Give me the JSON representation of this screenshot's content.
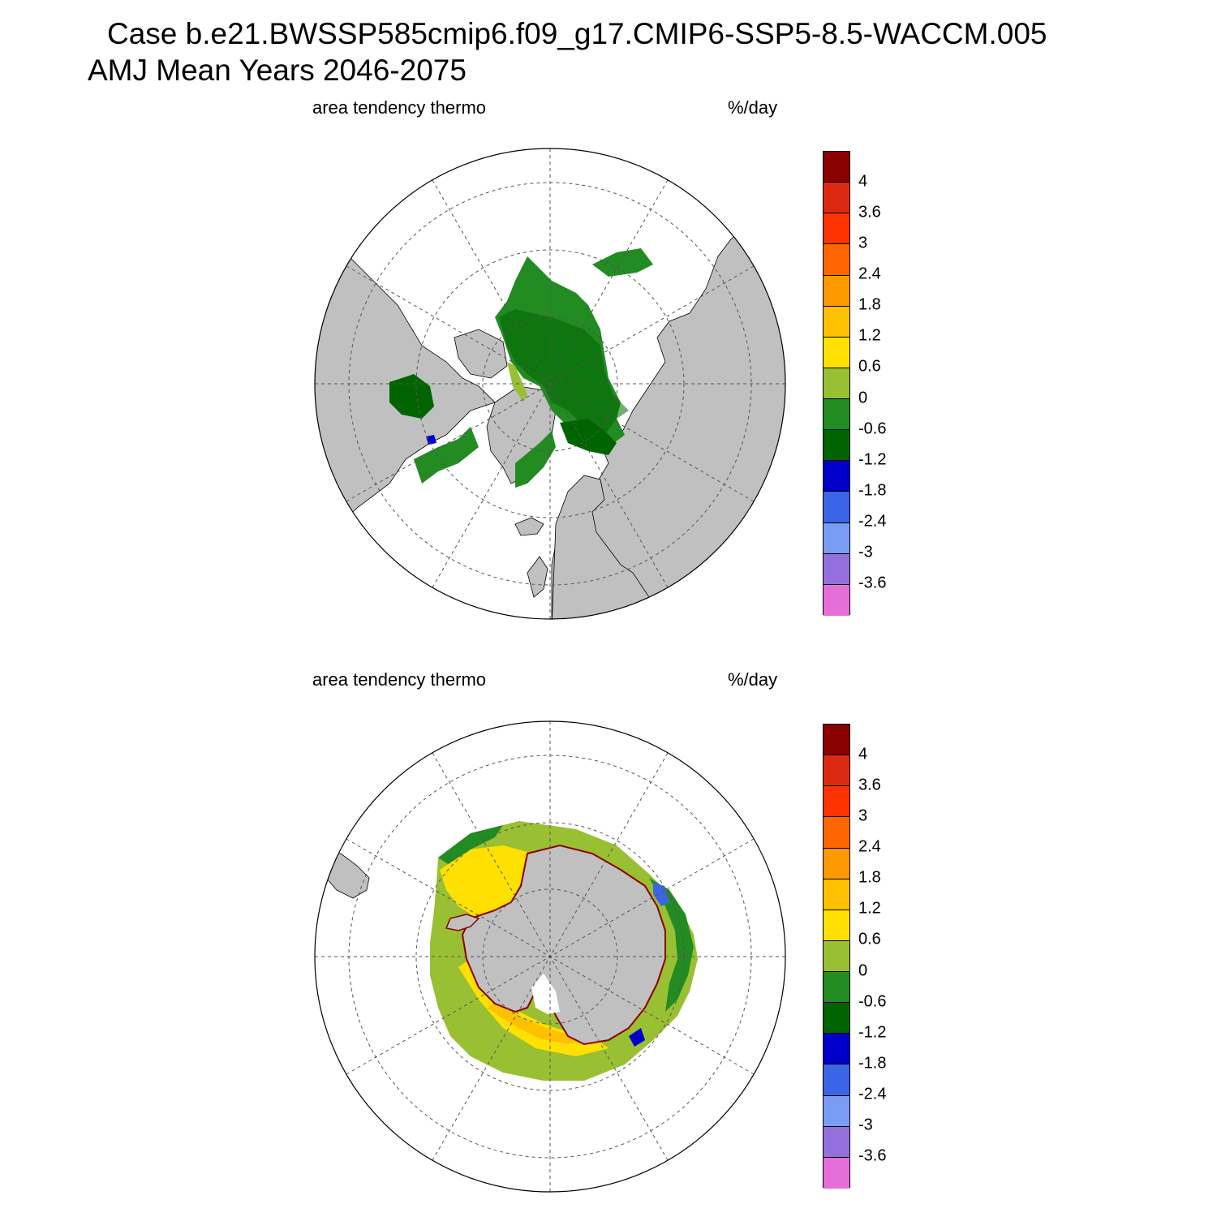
{
  "header": {
    "title_line1": "Case b.e21.BWSSP585cmip6.f09_g17.CMIP6-SSP5-8.5-WACCM.005",
    "title_line2": "AMJ Mean   Years 2046-2075"
  },
  "panels": [
    {
      "id": "north",
      "hemisphere": "Arctic",
      "left_label": "area tendency thermo",
      "right_label": "%/day"
    },
    {
      "id": "south",
      "hemisphere": "Antarctic",
      "left_label": "area tendency thermo",
      "right_label": "%/day"
    }
  ],
  "colorbar": {
    "labels": [
      "4",
      "3.6",
      "3",
      "2.4",
      "1.8",
      "1.2",
      "0.6",
      "0",
      "-0.6",
      "-1.2",
      "-1.8",
      "-2.4",
      "-3",
      "-3.6"
    ],
    "colors": [
      "#8b0000",
      "#dc2a12",
      "#ff3300",
      "#ff6600",
      "#ff9900",
      "#ffc000",
      "#ffe000",
      "#99bf33",
      "#228b22",
      "#006400",
      "#0000c8",
      "#3c64e6",
      "#7a9cf5",
      "#9370db",
      "#e66ed8"
    ]
  },
  "map_colors": {
    "land": "#c0c0c0",
    "ocean": "#ffffff",
    "grid": "#555555"
  }
}
